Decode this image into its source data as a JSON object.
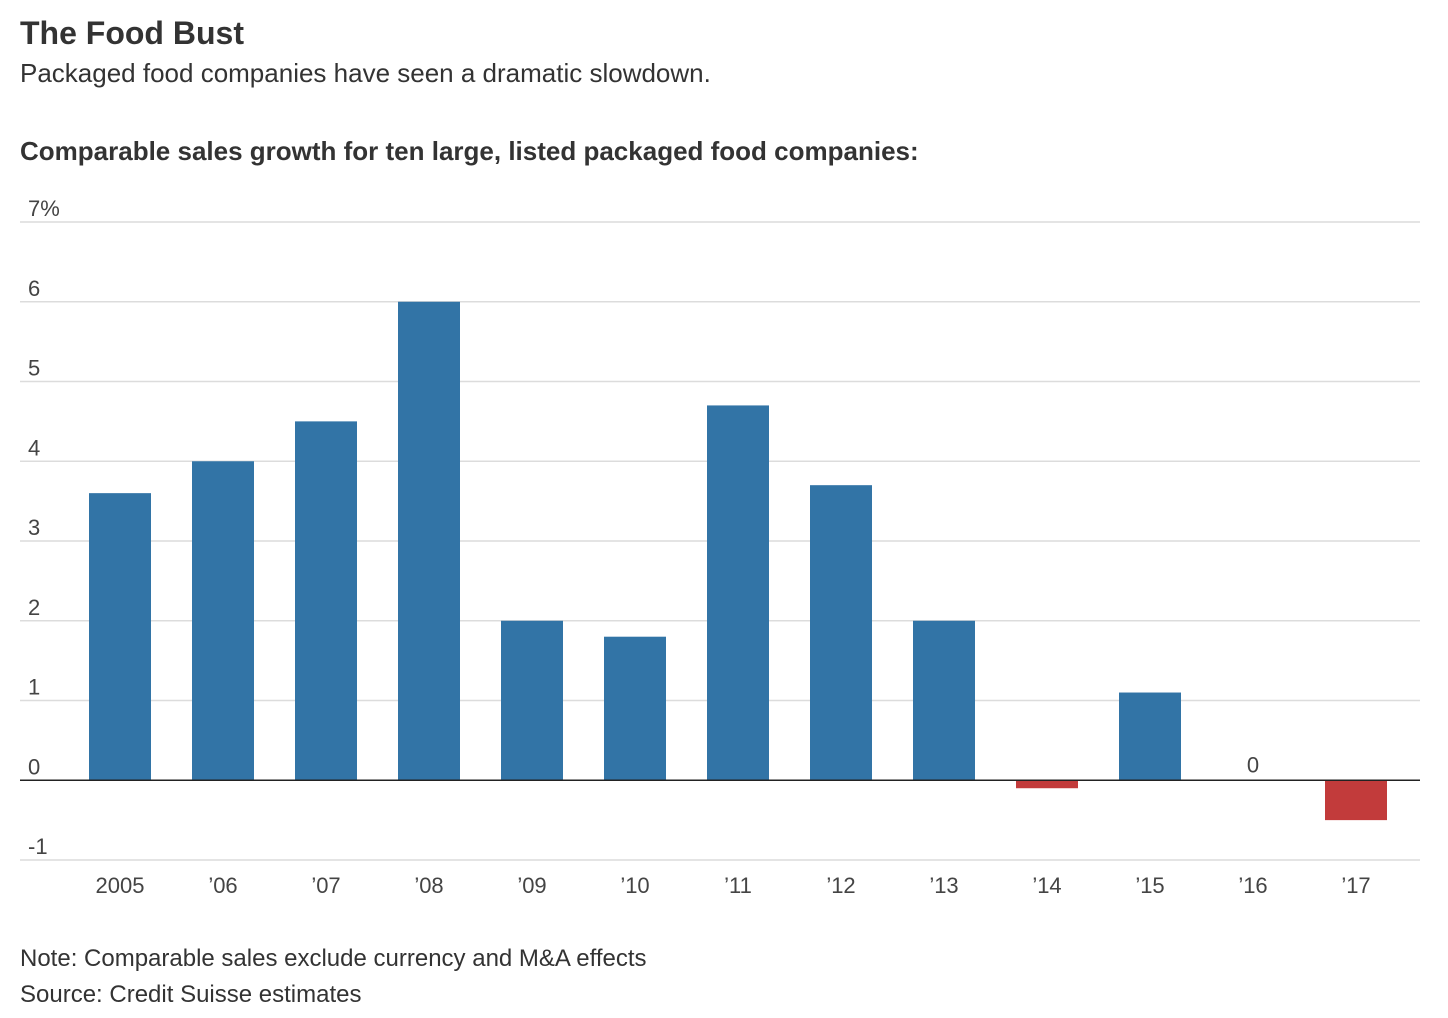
{
  "chart_data": {
    "type": "bar",
    "title": "The Food Bust",
    "subtitle": "Packaged food companies have seen a dramatic slowdown.",
    "heading": "Comparable sales growth for ten large, listed packaged food companies:",
    "categories": [
      "2005",
      "’06",
      "’07",
      "’08",
      "’09",
      "’10",
      "’11",
      "’12",
      "’13",
      "’14",
      "’15",
      "’16",
      "’17"
    ],
    "values": [
      3.6,
      4.0,
      4.5,
      6.0,
      2.0,
      1.8,
      4.7,
      3.7,
      2.0,
      -0.1,
      1.1,
      0,
      -0.5
    ],
    "color": "#3274a6",
    "negative_color": "#c23b3b",
    "ylim": [
      -1,
      7
    ],
    "yticks": [
      -1,
      0,
      1,
      2,
      3,
      4,
      5,
      6,
      {
        "value": 7,
        "label": "7%"
      }
    ],
    "grid": true,
    "note": "Note: Comparable sales exclude currency and M&A effects",
    "source": "Source: Credit Suisse estimates"
  }
}
